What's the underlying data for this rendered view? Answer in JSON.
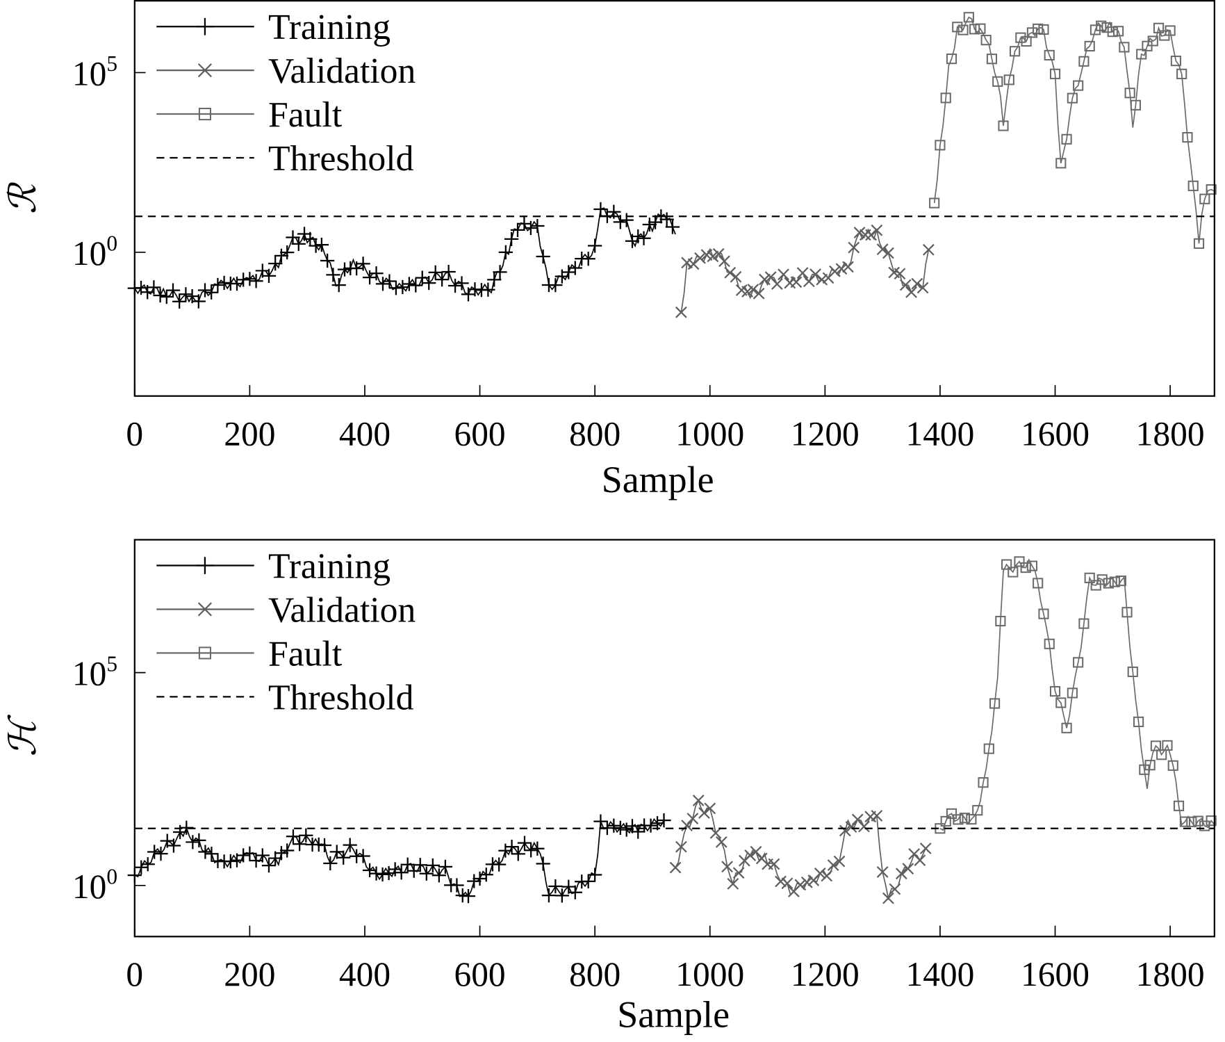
{
  "chart_data": [
    {
      "type": "line",
      "title": "",
      "xlabel": "Sample",
      "ylabel": "ℛ",
      "yscale": "log",
      "xlim": [
        0,
        1877
      ],
      "ylim_log10": [
        -4,
        7.02
      ],
      "xticks": [
        0,
        200,
        400,
        600,
        800,
        1000,
        1200,
        1400,
        1600,
        1800
      ],
      "yticks_log10": [
        0,
        5
      ],
      "ytick_labels": [
        "10",
        "10"
      ],
      "ytick_exponents": [
        "0",
        "5"
      ],
      "legend": {
        "position": "top-left",
        "entries": [
          "Training",
          "Validation",
          "Fault",
          "Threshold"
        ]
      },
      "threshold_log10": 1.0,
      "series": [
        {
          "name": "Training",
          "marker": "plus",
          "color": "#000000",
          "x": [
            0,
            50,
            100,
            150,
            200,
            250,
            270,
            300,
            330,
            350,
            380,
            420,
            460,
            500,
            540,
            580,
            620,
            650,
            660,
            700,
            720,
            760,
            800,
            810,
            850,
            870,
            900,
            920,
            940
          ],
          "log10_y": [
            -1.0,
            -1.1,
            -1.35,
            -0.9,
            -0.8,
            -0.4,
            0.3,
            0.4,
            0.07,
            -0.9,
            -0.26,
            -0.7,
            -1.0,
            -0.8,
            -0.6,
            -1.1,
            -1.0,
            0.07,
            0.72,
            0.72,
            -1.0,
            -0.48,
            0.07,
            1.15,
            0.93,
            0.28,
            0.72,
            1.15,
            0.5
          ]
        },
        {
          "name": "Validation",
          "marker": "x",
          "color": "#5f5f5f",
          "x": [
            950,
            960,
            1000,
            1020,
            1040,
            1070,
            1100,
            1150,
            1200,
            1240,
            1260,
            1290,
            1310,
            1340,
            1370,
            1380
          ],
          "log10_y": [
            -1.67,
            -0.37,
            -0.04,
            -0.15,
            -0.7,
            -1.24,
            -0.8,
            -0.7,
            -0.7,
            -0.37,
            0.5,
            0.5,
            -0.15,
            -1.0,
            -1.0,
            0.07
          ]
        },
        {
          "name": "Fault",
          "marker": "square",
          "color": "#6a6a6a",
          "x": [
            1390,
            1400,
            1415,
            1430,
            1450,
            1480,
            1500,
            1510,
            1530,
            1560,
            1580,
            1600,
            1610,
            1630,
            1650,
            1670,
            1700,
            1720,
            1735,
            1750,
            1780,
            1800,
            1820,
            1840,
            1850,
            1860,
            1877
          ],
          "log10_y": [
            1.37,
            2.9,
            5.07,
            6.15,
            6.48,
            5.93,
            4.85,
            3.65,
            5.7,
            6.15,
            6.15,
            4.85,
            2.35,
            4.2,
            5.3,
            6.26,
            6.26,
            5.83,
            3.54,
            5.5,
            6.15,
            6.04,
            4.85,
            1.8,
            0.28,
            1.59,
            1.7
          ]
        }
      ]
    },
    {
      "type": "line",
      "title": "",
      "xlabel": "Sample",
      "ylabel": "ℋ",
      "yscale": "log",
      "xlim": [
        0,
        1877
      ],
      "ylim_log10": [
        -1.2,
        8.14
      ],
      "xticks": [
        0,
        200,
        400,
        600,
        800,
        1000,
        1200,
        1400,
        1600,
        1800
      ],
      "yticks_log10": [
        0,
        5
      ],
      "ytick_labels": [
        "10",
        "10"
      ],
      "ytick_exponents": [
        "0",
        "5"
      ],
      "legend": {
        "position": "top-left",
        "entries": [
          "Training",
          "Validation",
          "Fault",
          "Threshold"
        ]
      },
      "threshold_log10": 1.34,
      "series": [
        {
          "name": "Training",
          "marker": "plus",
          "color": "#000000",
          "x": [
            0,
            40,
            90,
            150,
            200,
            250,
            270,
            320,
            340,
            380,
            420,
            480,
            540,
            570,
            600,
            650,
            700,
            720,
            760,
            800,
            810,
            850,
            880,
            920
          ],
          "log10_y": [
            0.24,
            0.79,
            1.25,
            0.51,
            0.7,
            0.51,
            1.07,
            1.07,
            0.61,
            0.88,
            0.24,
            0.42,
            0.33,
            -0.31,
            0.15,
            0.79,
            0.97,
            -0.13,
            -0.13,
            0.24,
            1.43,
            1.34,
            1.34,
            1.53
          ]
        },
        {
          "name": "Validation",
          "marker": "x",
          "color": "#5f5f5f",
          "x": [
            940,
            960,
            980,
            1000,
            1020,
            1040,
            1070,
            1100,
            1140,
            1180,
            1220,
            1240,
            1290,
            1300,
            1310,
            1350,
            1380
          ],
          "log10_y": [
            0.42,
            1.34,
            1.89,
            1.71,
            0.97,
            0.06,
            0.79,
            0.61,
            -0.13,
            0.15,
            0.42,
            1.43,
            1.53,
            0.24,
            -0.31,
            0.61,
            0.79
          ]
        },
        {
          "name": "Fault",
          "marker": "square",
          "color": "#6a6a6a",
          "x": [
            1400,
            1420,
            1460,
            1480,
            1500,
            1510,
            1560,
            1580,
            1600,
            1620,
            1640,
            1660,
            1720,
            1740,
            1760,
            1770,
            1800,
            1820,
            1877
          ],
          "log10_y": [
            1.34,
            1.62,
            1.53,
            2.63,
            4.83,
            7.41,
            7.59,
            6.49,
            4.65,
            3.73,
            5.2,
            7.13,
            7.13,
            4.28,
            2.26,
            3.18,
            3.18,
            1.53,
            1.43
          ]
        }
      ]
    }
  ]
}
